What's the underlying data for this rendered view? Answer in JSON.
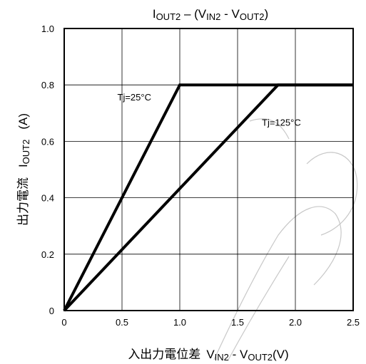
{
  "chart_data": {
    "type": "line",
    "title": "I_OUT2 – (V_IN2 - V_OUT2)",
    "title_parts": {
      "i": "I",
      "i_sub": "OUT2",
      "mid": " – (V",
      "v1_sub": "IN2",
      "sep": " - V",
      "v2_sub": "OUT2",
      "end": ")"
    },
    "xlabel": "入出力電位差 V_IN2 - V_OUT2(V)",
    "xlabel_parts": {
      "jp": "入出力電位差",
      "v": "V",
      "v1_sub": "IN2",
      "sep": " - V",
      "v2_sub": "OUT2",
      "unit": "(V)"
    },
    "ylabel": "出力電流 I_OUT2 (A)",
    "ylabel_parts": {
      "jp": "出力電流",
      "i": "I",
      "i_sub": "OUT2",
      "unit": "(A)"
    },
    "xlim": [
      0,
      2.5
    ],
    "ylim": [
      0,
      1.0
    ],
    "x_ticks": [
      0,
      0.5,
      1.0,
      1.5,
      2.0,
      2.5
    ],
    "x_tick_labels": [
      "0",
      "0.5",
      "1.0",
      "1.5",
      "2.0",
      "2.5"
    ],
    "y_ticks": [
      0,
      0.2,
      0.4,
      0.6,
      0.8,
      1.0
    ],
    "y_tick_labels": [
      "0",
      "0.2",
      "0.4",
      "0.6",
      "0.8",
      "1.0"
    ],
    "grid": true,
    "series": [
      {
        "name": "Tj=25°C",
        "x": [
          0,
          1.0,
          2.5
        ],
        "y": [
          0,
          0.8,
          0.8
        ]
      },
      {
        "name": "Tj=125°C",
        "x": [
          0,
          1.85,
          2.5
        ],
        "y": [
          0,
          0.8,
          0.8
        ]
      }
    ],
    "annotations": [
      {
        "text": "Tj=25°C",
        "x": 0.46,
        "y": 0.745
      },
      {
        "text": "Tj=125°C",
        "x": 1.71,
        "y": 0.655
      }
    ]
  },
  "colors": {
    "line": "#000000",
    "grid": "#000000",
    "watermark": "#c8c8c8"
  }
}
